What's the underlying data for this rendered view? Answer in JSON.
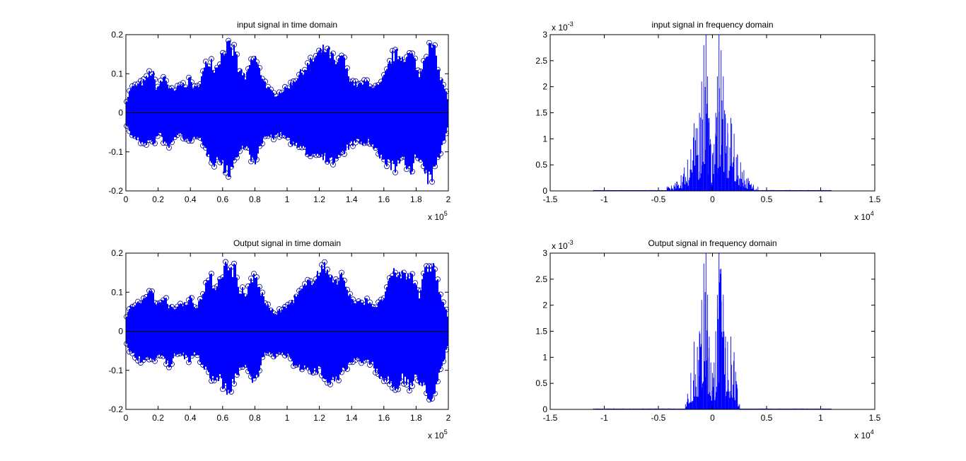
{
  "window": {
    "background": "#ffffff"
  },
  "colors": {
    "signal": "#0000ff",
    "marker": "#0000a0",
    "baseline": "#000000",
    "axes": "#000000"
  },
  "chart_data": [
    {
      "id": "input-time",
      "type": "line",
      "title": "input signal in time domain",
      "xlabel": "",
      "ylabel": "",
      "marker": "circle",
      "xlim": [
        0,
        200000
      ],
      "ylim": [
        -0.2,
        0.2
      ],
      "xticks": [
        0,
        20000,
        40000,
        60000,
        80000,
        100000,
        120000,
        140000,
        160000,
        180000,
        200000
      ],
      "xtick_labels": [
        "0",
        "0.2",
        "0.4",
        "0.6",
        "0.8",
        "1",
        "1.2",
        "1.4",
        "1.6",
        "1.8",
        "2"
      ],
      "yticks": [
        -0.2,
        -0.1,
        0,
        0.1,
        0.2
      ],
      "ytick_labels": [
        "-0.2",
        "-0.1",
        "0",
        "0.1",
        "0.2"
      ],
      "x_exponent": {
        "base": "x 10",
        "power": "5"
      },
      "y_exponent": null,
      "grid": false,
      "envelope": {
        "x": [
          0,
          3000,
          8000,
          12000,
          15000,
          17000,
          19000,
          21000,
          24000,
          27000,
          30000,
          34000,
          38000,
          40000,
          42000,
          44000,
          46000,
          50000,
          53000,
          55000,
          58000,
          60000,
          62000,
          64000,
          66000,
          68000,
          70000,
          72000,
          74000,
          77000,
          80000,
          82000,
          84000,
          86000,
          88000,
          90000,
          93000,
          96000,
          100000,
          104000,
          108000,
          112000,
          116000,
          120000,
          124000,
          128000,
          131000,
          134000,
          137000,
          140000,
          143000,
          146000,
          150000,
          154000,
          158000,
          162000,
          165000,
          168000,
          171000,
          174000,
          177000,
          180000,
          182000,
          185000,
          187000,
          190000,
          192000,
          195000,
          198000,
          200000
        ],
        "upper": [
          0.03,
          0.07,
          0.08,
          0.09,
          0.115,
          0.11,
          0.07,
          0.08,
          0.105,
          0.07,
          0.06,
          0.08,
          0.08,
          0.1,
          0.07,
          0.07,
          0.09,
          0.14,
          0.15,
          0.12,
          0.15,
          0.17,
          0.185,
          0.19,
          0.17,
          0.185,
          0.11,
          0.12,
          0.09,
          0.14,
          0.16,
          0.13,
          0.11,
          0.09,
          0.07,
          0.06,
          0.05,
          0.06,
          0.07,
          0.09,
          0.11,
          0.13,
          0.15,
          0.17,
          0.18,
          0.16,
          0.13,
          0.17,
          0.12,
          0.09,
          0.08,
          0.08,
          0.09,
          0.07,
          0.08,
          0.12,
          0.16,
          0.165,
          0.16,
          0.16,
          0.165,
          0.14,
          0.1,
          0.16,
          0.18,
          0.19,
          0.17,
          0.1,
          0.07,
          0.03
        ],
        "lower": [
          -0.03,
          -0.06,
          -0.08,
          -0.085,
          -0.08,
          -0.09,
          -0.07,
          -0.06,
          -0.085,
          -0.1,
          -0.07,
          -0.06,
          -0.08,
          -0.09,
          -0.06,
          -0.07,
          -0.08,
          -0.11,
          -0.13,
          -0.14,
          -0.13,
          -0.15,
          -0.165,
          -0.17,
          -0.15,
          -0.13,
          -0.12,
          -0.1,
          -0.09,
          -0.12,
          -0.15,
          -0.12,
          -0.09,
          -0.07,
          -0.06,
          -0.07,
          -0.07,
          -0.06,
          -0.07,
          -0.09,
          -0.1,
          -0.11,
          -0.12,
          -0.11,
          -0.13,
          -0.14,
          -0.13,
          -0.12,
          -0.1,
          -0.09,
          -0.08,
          -0.09,
          -0.08,
          -0.1,
          -0.13,
          -0.14,
          -0.15,
          -0.16,
          -0.13,
          -0.15,
          -0.16,
          -0.12,
          -0.14,
          -0.16,
          -0.19,
          -0.18,
          -0.16,
          -0.11,
          -0.07,
          -0.03
        ]
      }
    },
    {
      "id": "input-freq",
      "type": "line",
      "title": "input signal in frequency domain",
      "xlabel": "",
      "ylabel": "",
      "xlim": [
        -15000,
        15000
      ],
      "ylim": [
        0,
        0.003
      ],
      "xticks": [
        -15000,
        -10000,
        -5000,
        0,
        5000,
        10000,
        15000
      ],
      "xtick_labels": [
        "-1.5",
        "-1",
        "-0.5",
        "0",
        "0.5",
        "1",
        "1.5"
      ],
      "yticks": [
        0,
        0.0005,
        0.001,
        0.0015,
        0.002,
        0.0025,
        0.003
      ],
      "ytick_labels": [
        "0",
        "0.5",
        "1",
        "1.5",
        "2",
        "2.5",
        "3"
      ],
      "x_exponent": {
        "base": "x 10",
        "power": "4"
      },
      "y_exponent": {
        "base": "x 10",
        "power": "-3"
      },
      "grid": false,
      "support": [
        -11000,
        11000
      ],
      "spikes": {
        "x": [
          -4200,
          -3800,
          -3300,
          -2900,
          -2600,
          -2300,
          -2000,
          -1700,
          -1400,
          -1200,
          -1000,
          -800,
          -600,
          -450,
          -300,
          -150,
          0,
          150,
          300,
          450,
          600,
          800,
          1000,
          1200,
          1400,
          1700,
          2000,
          2300,
          2600,
          2900,
          3300,
          3800,
          4200
        ],
        "y": [
          8e-05,
          0.0001,
          0.00018,
          0.0003,
          0.00045,
          0.0006,
          0.0008,
          0.0013,
          0.0012,
          0.0015,
          0.0021,
          0.0028,
          0.003,
          0.0022,
          0.0014,
          0.0009,
          0.0007,
          0.0009,
          0.0015,
          0.0022,
          0.003,
          0.0027,
          0.0022,
          0.0014,
          0.0013,
          0.0014,
          0.0011,
          0.0007,
          0.00055,
          0.0004,
          0.00025,
          0.00012,
          8e-05
        ]
      }
    },
    {
      "id": "output-time",
      "type": "line",
      "title": "Output signal in time domain",
      "xlabel": "",
      "ylabel": "",
      "marker": "circle",
      "xlim": [
        0,
        200000
      ],
      "ylim": [
        -0.2,
        0.2
      ],
      "xticks": [
        0,
        20000,
        40000,
        60000,
        80000,
        100000,
        120000,
        140000,
        160000,
        180000,
        200000
      ],
      "xtick_labels": [
        "0",
        "0.2",
        "0.4",
        "0.6",
        "0.8",
        "1",
        "1.2",
        "1.4",
        "1.6",
        "1.8",
        "2"
      ],
      "yticks": [
        -0.2,
        -0.1,
        0,
        0.1,
        0.2
      ],
      "ytick_labels": [
        "-0.2",
        "-0.1",
        "0",
        "0.1",
        "0.2"
      ],
      "x_exponent": {
        "base": "x 10",
        "power": "5"
      },
      "y_exponent": null,
      "grid": false,
      "envelope": {
        "x": [
          0,
          3000,
          8000,
          12000,
          15000,
          17000,
          19000,
          21000,
          24000,
          27000,
          30000,
          34000,
          38000,
          40000,
          42000,
          44000,
          46000,
          50000,
          53000,
          55000,
          58000,
          60000,
          62000,
          64000,
          66000,
          68000,
          70000,
          72000,
          74000,
          77000,
          80000,
          82000,
          84000,
          86000,
          88000,
          90000,
          93000,
          96000,
          100000,
          104000,
          108000,
          112000,
          116000,
          120000,
          124000,
          128000,
          131000,
          134000,
          137000,
          140000,
          143000,
          146000,
          150000,
          154000,
          158000,
          162000,
          165000,
          168000,
          171000,
          174000,
          177000,
          180000,
          182000,
          185000,
          187000,
          190000,
          192000,
          195000,
          198000,
          200000
        ],
        "upper": [
          0.035,
          0.07,
          0.08,
          0.09,
          0.12,
          0.11,
          0.07,
          0.08,
          0.105,
          0.07,
          0.06,
          0.08,
          0.08,
          0.1,
          0.07,
          0.07,
          0.09,
          0.14,
          0.15,
          0.12,
          0.15,
          0.17,
          0.185,
          0.19,
          0.17,
          0.185,
          0.11,
          0.12,
          0.09,
          0.14,
          0.16,
          0.13,
          0.11,
          0.09,
          0.07,
          0.06,
          0.05,
          0.06,
          0.07,
          0.09,
          0.11,
          0.13,
          0.15,
          0.17,
          0.18,
          0.16,
          0.13,
          0.17,
          0.12,
          0.09,
          0.08,
          0.08,
          0.09,
          0.07,
          0.08,
          0.12,
          0.16,
          0.165,
          0.16,
          0.16,
          0.165,
          0.14,
          0.1,
          0.16,
          0.18,
          0.19,
          0.17,
          0.1,
          0.07,
          0.03
        ],
        "lower": [
          -0.035,
          -0.06,
          -0.08,
          -0.085,
          -0.08,
          -0.09,
          -0.07,
          -0.06,
          -0.085,
          -0.1,
          -0.07,
          -0.06,
          -0.08,
          -0.09,
          -0.06,
          -0.07,
          -0.08,
          -0.11,
          -0.13,
          -0.14,
          -0.13,
          -0.15,
          -0.165,
          -0.17,
          -0.15,
          -0.13,
          -0.12,
          -0.1,
          -0.09,
          -0.12,
          -0.15,
          -0.12,
          -0.09,
          -0.07,
          -0.06,
          -0.07,
          -0.07,
          -0.06,
          -0.07,
          -0.09,
          -0.1,
          -0.11,
          -0.12,
          -0.11,
          -0.13,
          -0.14,
          -0.13,
          -0.12,
          -0.1,
          -0.09,
          -0.08,
          -0.09,
          -0.08,
          -0.1,
          -0.13,
          -0.14,
          -0.15,
          -0.16,
          -0.13,
          -0.15,
          -0.16,
          -0.12,
          -0.14,
          -0.16,
          -0.19,
          -0.18,
          -0.16,
          -0.11,
          -0.07,
          -0.03
        ]
      }
    },
    {
      "id": "output-freq",
      "type": "line",
      "title": "Output signal in frequency domain",
      "xlabel": "",
      "ylabel": "",
      "xlim": [
        -15000,
        15000
      ],
      "ylim": [
        0,
        0.003
      ],
      "xticks": [
        -15000,
        -10000,
        -5000,
        0,
        5000,
        10000,
        15000
      ],
      "xtick_labels": [
        "-1.5",
        "-1",
        "-0.5",
        "0",
        "0.5",
        "1",
        "1.5"
      ],
      "yticks": [
        0,
        0.0005,
        0.001,
        0.0015,
        0.002,
        0.0025,
        0.003
      ],
      "ytick_labels": [
        "0",
        "0.5",
        "1",
        "1.5",
        "2",
        "2.5",
        "3"
      ],
      "x_exponent": {
        "base": "x 10",
        "power": "4"
      },
      "y_exponent": {
        "base": "x 10",
        "power": "-3"
      },
      "grid": false,
      "support": [
        -11000,
        11000
      ],
      "spikes": {
        "x": [
          -2500,
          -2300,
          -2000,
          -1700,
          -1400,
          -1200,
          -1000,
          -800,
          -600,
          -450,
          -300,
          -150,
          0,
          150,
          300,
          450,
          600,
          800,
          1000,
          1200,
          1400,
          1700,
          2000,
          2300,
          2500
        ],
        "y": [
          0.0001,
          0.0003,
          0.0007,
          0.0013,
          0.0012,
          0.0015,
          0.0021,
          0.0028,
          0.003,
          0.0022,
          0.0014,
          0.0009,
          0.0007,
          0.0009,
          0.0015,
          0.0022,
          0.003,
          0.0027,
          0.0022,
          0.0014,
          0.0013,
          0.0014,
          0.0011,
          0.0004,
          0.0001
        ]
      }
    }
  ]
}
